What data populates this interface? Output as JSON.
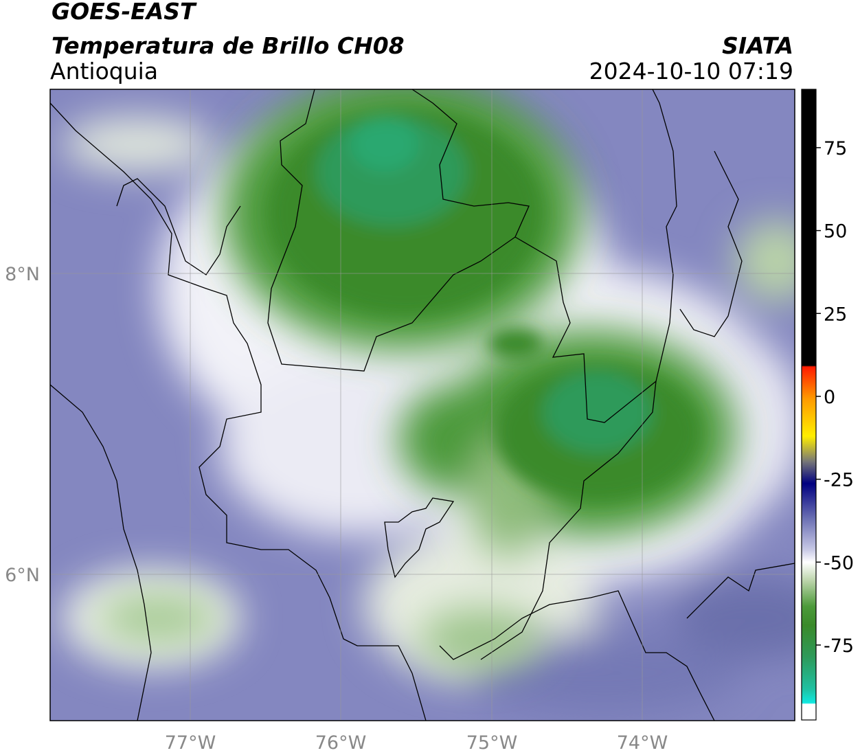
{
  "header": {
    "title": "GOES-EAST",
    "subtitle": "Temperatura de Brillo CH08",
    "region": "Antioquia",
    "source": "SIATA",
    "timestamp": "2024-10-10 07:19"
  },
  "map": {
    "lon_labels": [
      "77°W",
      "76°W",
      "75°W",
      "74°W"
    ],
    "lat_labels": [
      "8°N",
      "6°N"
    ]
  },
  "colorbar": {
    "lim": [
      -97.6,
      92.6
    ],
    "ticks": [
      75,
      50,
      25,
      0,
      -25,
      -50,
      -75
    ]
  }
}
